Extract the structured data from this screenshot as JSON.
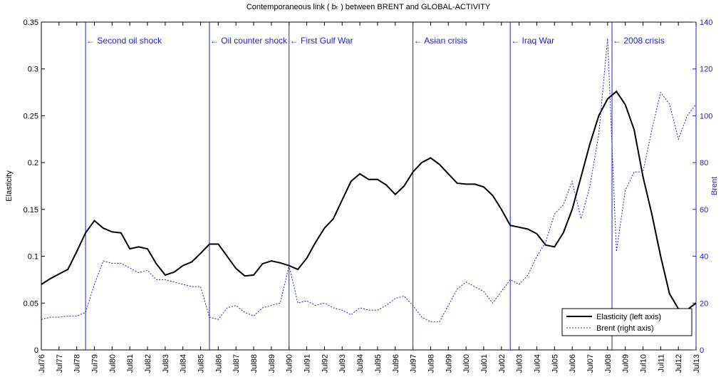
{
  "chart_data": {
    "type": "line",
    "title": "Contemporaneous link ( bₜ ) between BRENT and GLOBAL-ACTIVITY",
    "ylabel": "Elasticity",
    "y2label": "Brent",
    "x": [
      1976.5,
      1977,
      1977.5,
      1978,
      1978.5,
      1979,
      1979.5,
      1980,
      1980.5,
      1981,
      1981.5,
      1982,
      1982.5,
      1983,
      1983.5,
      1984,
      1984.5,
      1985,
      1985.5,
      1986,
      1986.5,
      1987,
      1987.5,
      1988,
      1988.5,
      1989,
      1989.5,
      1990,
      1990.5,
      1991,
      1991.5,
      1992,
      1992.5,
      1993,
      1993.5,
      1994,
      1994.5,
      1995,
      1995.5,
      1996,
      1996.5,
      1997,
      1997.5,
      1998,
      1998.5,
      1999,
      1999.5,
      2000,
      2000.5,
      2001,
      2001.5,
      2002,
      2002.5,
      2003,
      2003.5,
      2004,
      2004.5,
      2005,
      2005.5,
      2006,
      2006.5,
      2007,
      2007.5,
      2008,
      2008.5,
      2009,
      2009.5,
      2010,
      2010.5,
      2011,
      2011.5,
      2012,
      2012.5,
      2013,
      2013.5
    ],
    "series": [
      {
        "name": "Elasticity (left axis)",
        "color": "#000000",
        "dash": "solid",
        "axis": "y",
        "values": [
          0.07,
          0.076,
          0.081,
          0.086,
          0.105,
          0.125,
          0.138,
          0.13,
          0.126,
          0.125,
          0.108,
          0.11,
          0.108,
          0.092,
          0.08,
          0.083,
          0.09,
          0.094,
          0.103,
          0.113,
          0.113,
          0.1,
          0.087,
          0.079,
          0.08,
          0.092,
          0.095,
          0.093,
          0.09,
          0.086,
          0.098,
          0.115,
          0.13,
          0.14,
          0.16,
          0.18,
          0.188,
          0.182,
          0.182,
          0.176,
          0.166,
          0.175,
          0.19,
          0.2,
          0.205,
          0.198,
          0.188,
          0.178,
          0.177,
          0.177,
          0.174,
          0.165,
          0.15,
          0.133,
          0.131,
          0.129,
          0.124,
          0.112,
          0.11,
          0.125,
          0.15,
          0.185,
          0.22,
          0.25,
          0.268,
          0.276,
          0.262,
          0.235,
          0.185,
          0.145,
          0.1,
          0.06,
          0.044,
          0.043,
          0.05
        ]
      },
      {
        "name": "Brent (right axis)",
        "color": "#1f1fd0",
        "dash": "dotted",
        "axis": "y2",
        "values": [
          13,
          14,
          14,
          14.5,
          14.5,
          16,
          28,
          38,
          37,
          37,
          35,
          33,
          34,
          30,
          30,
          29,
          28,
          27,
          27,
          14,
          13,
          18,
          19,
          16,
          14.5,
          18,
          19,
          20,
          36,
          20,
          21,
          19,
          20,
          18,
          17,
          15,
          18,
          17,
          17,
          19,
          22,
          23,
          19,
          14,
          12,
          12,
          19,
          26,
          29,
          27,
          25,
          20,
          25,
          30,
          28,
          32,
          40,
          46,
          58,
          62,
          72,
          56,
          70,
          92,
          133,
          42,
          68,
          76,
          76,
          94,
          110,
          105,
          90,
          100,
          105
        ]
      }
    ],
    "events": [
      {
        "x": 1979.0,
        "label": "← Second oil shock"
      },
      {
        "x": 1986.0,
        "label": "← Oil counter shock"
      },
      {
        "x": 1990.5,
        "label": "← First Gulf War"
      },
      {
        "x": 1997.5,
        "label": "← Asian crisis"
      },
      {
        "x": 2003.0,
        "label": "← Iraq War"
      },
      {
        "x": 2008.75,
        "label": "← 2008 crisis"
      }
    ],
    "event_color": "#1f1fd0",
    "xlim": [
      1976.5,
      2013.5
    ],
    "xticks": [
      {
        "value": 1976.5,
        "label": "Jul76"
      },
      {
        "value": 1977.5,
        "label": "Jul77"
      },
      {
        "value": 1978.5,
        "label": "Jul78"
      },
      {
        "value": 1979.5,
        "label": "Jul79"
      },
      {
        "value": 1980.5,
        "label": "Jul80"
      },
      {
        "value": 1981.5,
        "label": "Jul81"
      },
      {
        "value": 1982.5,
        "label": "Jul82"
      },
      {
        "value": 1983.5,
        "label": "Jul83"
      },
      {
        "value": 1984.5,
        "label": "Jul84"
      },
      {
        "value": 1985.5,
        "label": "Jul85"
      },
      {
        "value": 1986.5,
        "label": "Jul86"
      },
      {
        "value": 1987.5,
        "label": "Jul87"
      },
      {
        "value": 1988.5,
        "label": "Jul88"
      },
      {
        "value": 1989.5,
        "label": "Jul89"
      },
      {
        "value": 1990.5,
        "label": "Jul90"
      },
      {
        "value": 1991.5,
        "label": "Jul91"
      },
      {
        "value": 1992.5,
        "label": "Jul92"
      },
      {
        "value": 1993.5,
        "label": "Jul93"
      },
      {
        "value": 1994.5,
        "label": "Jul94"
      },
      {
        "value": 1995.5,
        "label": "Jul95"
      },
      {
        "value": 1996.5,
        "label": "Jul96"
      },
      {
        "value": 1997.5,
        "label": "Jul97"
      },
      {
        "value": 1998.5,
        "label": "Jul98"
      },
      {
        "value": 1999.5,
        "label": "Jul99"
      },
      {
        "value": 2000.5,
        "label": "Jul00"
      },
      {
        "value": 2001.5,
        "label": "Jul01"
      },
      {
        "value": 2002.5,
        "label": "Jul02"
      },
      {
        "value": 2003.5,
        "label": "Jul03"
      },
      {
        "value": 2004.5,
        "label": "Jul04"
      },
      {
        "value": 2005.5,
        "label": "Jul05"
      },
      {
        "value": 2006.5,
        "label": "Jul06"
      },
      {
        "value": 2007.5,
        "label": "Jul07"
      },
      {
        "value": 2008.5,
        "label": "Jul08"
      },
      {
        "value": 2009.5,
        "label": "Jul09"
      },
      {
        "value": 2010.5,
        "label": "Jul10"
      },
      {
        "value": 2011.5,
        "label": "Jul11"
      },
      {
        "value": 2012.5,
        "label": "Jul12"
      },
      {
        "value": 2013.5,
        "label": "Jul13"
      }
    ],
    "ylim": [
      0,
      0.35
    ],
    "yticks": [
      0,
      0.05,
      0.1,
      0.15,
      0.2,
      0.25,
      0.3,
      0.35
    ],
    "y2lim": [
      0,
      140
    ],
    "y2ticks": [
      0,
      20,
      40,
      60,
      80,
      100,
      120,
      140
    ],
    "y2color": "#1f1fd0",
    "legend": "lower right"
  }
}
